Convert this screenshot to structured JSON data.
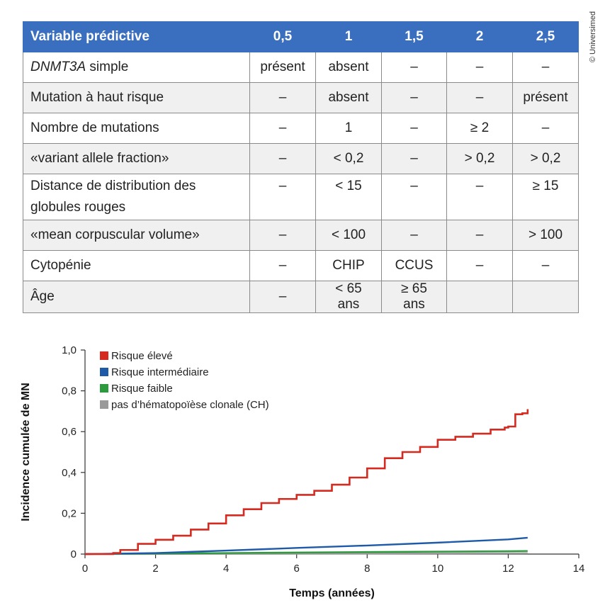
{
  "credit": "© Universimed",
  "table": {
    "headers": [
      "Variable prédictive",
      "0,5",
      "1",
      "1,5",
      "2",
      "2,5"
    ],
    "rows": [
      {
        "label_em": "DNMT3A",
        "label": " simple",
        "cells": [
          "présent",
          "absent",
          "–",
          "–",
          "–"
        ]
      },
      {
        "label": "Mutation à haut risque",
        "cells": [
          "–",
          "absent",
          "–",
          "–",
          "présent"
        ]
      },
      {
        "label": "Nombre de mutations",
        "cells": [
          "–",
          "1",
          "–",
          "≥ 2",
          "–"
        ]
      },
      {
        "label": "«variant allele fraction»",
        "cells": [
          "–",
          "< 0,2",
          "–",
          "> 0,2",
          "> 0,2"
        ]
      },
      {
        "label": "Distance de distribution des globules rouges",
        "cells": [
          "–",
          "< 15",
          "–",
          "–",
          "≥ 15"
        ]
      },
      {
        "label": "«mean corpuscular volume»",
        "cells": [
          "–",
          "< 100",
          "–",
          "–",
          "> 100"
        ]
      },
      {
        "label": "Cytopénie",
        "cells": [
          "–",
          "CHIP",
          "CCUS",
          "–",
          "–"
        ]
      },
      {
        "label": "Âge",
        "cells": [
          "–",
          "< 65 ans",
          "≥ 65 ans",
          "",
          ""
        ]
      }
    ]
  },
  "chart_data": {
    "type": "line",
    "xlabel": "Temps (années)",
    "ylabel": "Incidence cumulée de MN",
    "xlim": [
      0,
      14
    ],
    "ylim": [
      0,
      1
    ],
    "xticks": [
      0,
      2,
      4,
      6,
      8,
      10,
      12,
      14
    ],
    "yticks": [
      0,
      0.2,
      0.4,
      0.6,
      0.8,
      1.0
    ],
    "xtick_labels": [
      "0",
      "2",
      "4",
      "6",
      "8",
      "10",
      "12",
      "14"
    ],
    "ytick_labels": [
      "0",
      "0,2",
      "0,4",
      "0,6",
      "0,8",
      "1,0"
    ],
    "legend_position": "top-left",
    "grid": false,
    "series": [
      {
        "name": "Risque élevé",
        "color": "#d42a20",
        "step": true,
        "x": [
          0,
          0.8,
          1.0,
          1.5,
          2.0,
          2.5,
          3.0,
          3.5,
          4.0,
          4.5,
          5.0,
          5.5,
          6.0,
          6.5,
          7.0,
          7.5,
          8.0,
          8.5,
          9.0,
          9.5,
          10.0,
          10.5,
          11.0,
          11.5,
          11.9,
          12.0,
          12.2,
          12.4,
          12.55
        ],
        "y": [
          0,
          0.005,
          0.02,
          0.05,
          0.07,
          0.09,
          0.12,
          0.15,
          0.19,
          0.22,
          0.25,
          0.27,
          0.29,
          0.31,
          0.34,
          0.375,
          0.42,
          0.47,
          0.5,
          0.525,
          0.56,
          0.575,
          0.59,
          0.61,
          0.62,
          0.625,
          0.685,
          0.69,
          0.71
        ]
      },
      {
        "name": "Risque intermédiaire",
        "color": "#1e5aa8",
        "step": false,
        "x": [
          0,
          2,
          4,
          6,
          8,
          10,
          12,
          12.55
        ],
        "y": [
          0,
          0.005,
          0.017,
          0.03,
          0.042,
          0.056,
          0.072,
          0.08
        ]
      },
      {
        "name": "Risque faible",
        "color": "#2e9a3e",
        "step": false,
        "x": [
          0,
          4,
          8,
          12,
          12.55
        ],
        "y": [
          0,
          0.005,
          0.01,
          0.014,
          0.015
        ]
      },
      {
        "name": "pas d’hématopoïèse clonale (CH)",
        "color": "#9a9a9a",
        "step": false,
        "x": [
          0,
          6,
          12.55
        ],
        "y": [
          0,
          0.002,
          0.004
        ]
      }
    ]
  }
}
